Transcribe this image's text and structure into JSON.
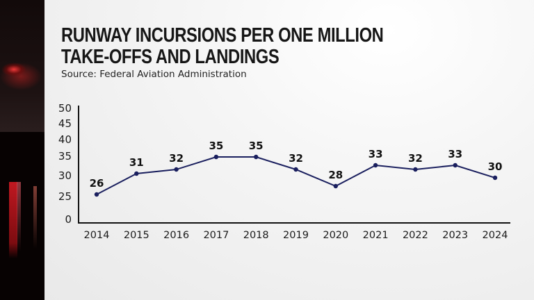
{
  "title_lines": [
    "RUNWAY INCURSIONS PER ONE MILLION",
    "TAKE-OFFS AND LANDINGS"
  ],
  "source": "Source: Federal Aviation Administration",
  "colors": {
    "line": "#1a1f5e",
    "axis": "#111111",
    "text": "#161616"
  },
  "chart_data": {
    "type": "line",
    "title": "RUNWAY INCURSIONS PER ONE MILLION TAKE-OFFS AND LANDINGS",
    "subtitle": "Source: Federal Aviation Administration",
    "xlabel": "",
    "ylabel": "",
    "categories": [
      "2014",
      "2015",
      "2016",
      "2017",
      "2018",
      "2019",
      "2020",
      "2021",
      "2022",
      "2023",
      "2024"
    ],
    "series": [
      {
        "name": "Runway incursions per one million take-offs and landings",
        "values": [
          26,
          31,
          32,
          35,
          35,
          32,
          28,
          33,
          32,
          33,
          30
        ]
      }
    ],
    "yticks": [
      0,
      25,
      30,
      35,
      40,
      45,
      50
    ],
    "ylim": [
      0,
      50
    ],
    "axis_break": "between 0 and 25",
    "grid": false,
    "legend": "none",
    "data_labels": true
  }
}
